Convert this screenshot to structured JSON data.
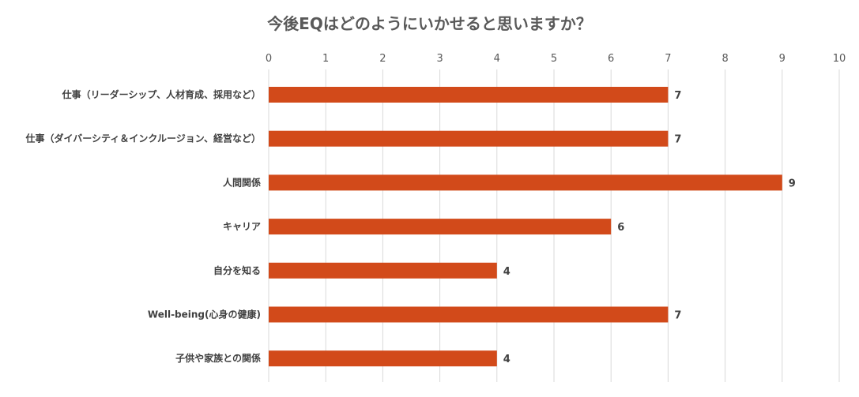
{
  "chart_data": {
    "type": "bar",
    "orientation": "horizontal",
    "title": "今後EQはどのようにいかせると思いますか？",
    "categories": [
      "仕事（リーダーシップ、人材育成、採用など）",
      "仕事（ダイバーシティ＆インクルージョン、経営など）",
      "人間関係",
      "キャリア",
      "自分を知る",
      "Well-being(心身の健康)",
      "子供や家族との関係"
    ],
    "values": [
      7,
      7,
      9,
      6,
      4,
      7,
      4
    ],
    "xlim": [
      0,
      10
    ],
    "xticks": [
      "0",
      "1",
      "2",
      "3",
      "4",
      "5",
      "6",
      "7",
      "8",
      "9",
      "10"
    ],
    "axis_position": "top",
    "grid": true,
    "bar_color": "#d24a1a",
    "data_labels": true
  }
}
